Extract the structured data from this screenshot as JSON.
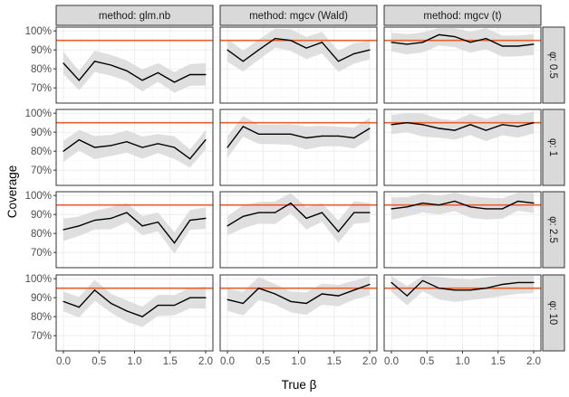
{
  "chart_data": {
    "type": "line",
    "title": "",
    "xlabel": "True β",
    "ylabel": "Coverage",
    "xlim": [
      0,
      2
    ],
    "ylim": [
      0.62,
      1.02
    ],
    "x_ticks": [
      0,
      0.5,
      1,
      1.5,
      2
    ],
    "x_tick_labels": [
      "0.0",
      "0.5",
      "1.0",
      "1.5",
      "2.0"
    ],
    "y_ticks": [
      0.7,
      0.8,
      0.9,
      1.0
    ],
    "y_tick_labels": [
      "70%",
      "80%",
      "90%",
      "100%"
    ],
    "reference_line": 0.95,
    "colors": {
      "line": "#000000",
      "band": "#d9d9d9",
      "reference": "#e8602c",
      "strip": "#d9d9d9",
      "border": "#333333",
      "grid": "#ebebeb"
    },
    "columns": [
      "method: glm.nb",
      "method: mgcv (Wald)",
      "method: mgcv (t)"
    ],
    "rows": [
      "φ: 0.5",
      "φ: 1",
      "φ: 2.5",
      "φ: 10"
    ],
    "x": [
      0,
      0.22,
      0.44,
      0.67,
      0.89,
      1.11,
      1.33,
      1.56,
      1.78,
      2.0
    ],
    "panels": [
      {
        "row": 0,
        "col": 0,
        "values": [
          0.83,
          0.74,
          0.84,
          0.82,
          0.79,
          0.74,
          0.78,
          0.73,
          0.77,
          0.77
        ]
      },
      {
        "row": 0,
        "col": 1,
        "values": [
          0.9,
          0.84,
          0.9,
          0.96,
          0.95,
          0.91,
          0.94,
          0.84,
          0.88,
          0.9
        ]
      },
      {
        "row": 0,
        "col": 2,
        "values": [
          0.94,
          0.93,
          0.94,
          0.98,
          0.97,
          0.94,
          0.96,
          0.92,
          0.92,
          0.93
        ]
      },
      {
        "row": 1,
        "col": 0,
        "values": [
          0.8,
          0.86,
          0.82,
          0.83,
          0.85,
          0.82,
          0.84,
          0.82,
          0.76,
          0.86
        ]
      },
      {
        "row": 1,
        "col": 1,
        "values": [
          0.82,
          0.93,
          0.89,
          0.89,
          0.89,
          0.87,
          0.88,
          0.88,
          0.87,
          0.92
        ]
      },
      {
        "row": 1,
        "col": 2,
        "values": [
          0.94,
          0.95,
          0.94,
          0.92,
          0.91,
          0.94,
          0.91,
          0.94,
          0.93,
          0.95
        ]
      },
      {
        "row": 2,
        "col": 0,
        "values": [
          0.82,
          0.84,
          0.87,
          0.88,
          0.91,
          0.84,
          0.86,
          0.75,
          0.87,
          0.88
        ]
      },
      {
        "row": 2,
        "col": 1,
        "values": [
          0.84,
          0.89,
          0.91,
          0.91,
          0.96,
          0.88,
          0.91,
          0.81,
          0.91,
          0.91
        ]
      },
      {
        "row": 2,
        "col": 2,
        "values": [
          0.93,
          0.94,
          0.96,
          0.95,
          0.97,
          0.94,
          0.93,
          0.93,
          0.97,
          0.96
        ]
      },
      {
        "row": 3,
        "col": 0,
        "values": [
          0.88,
          0.85,
          0.94,
          0.87,
          0.83,
          0.8,
          0.86,
          0.86,
          0.9,
          0.9
        ]
      },
      {
        "row": 3,
        "col": 1,
        "values": [
          0.89,
          0.87,
          0.95,
          0.92,
          0.88,
          0.87,
          0.92,
          0.91,
          0.94,
          0.97
        ]
      },
      {
        "row": 3,
        "col": 2,
        "values": [
          0.98,
          0.91,
          0.99,
          0.95,
          0.94,
          0.94,
          0.95,
          0.97,
          0.98,
          0.98
        ]
      }
    ]
  }
}
